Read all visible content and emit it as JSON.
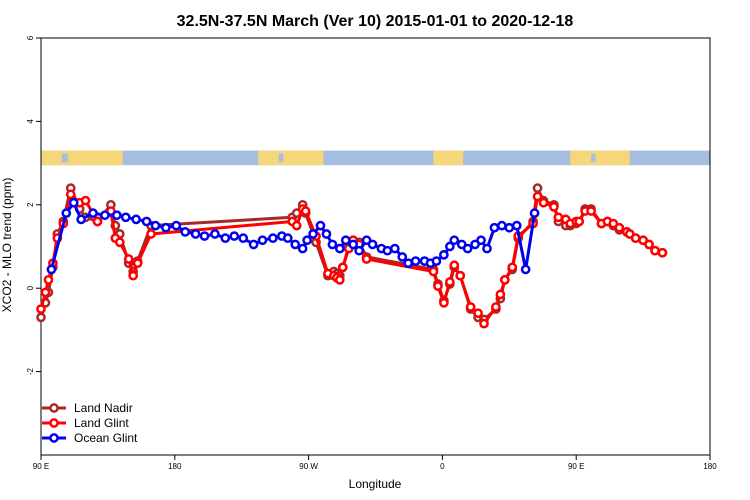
{
  "chart_data": {
    "type": "line",
    "title": "32.5N-37.5N March (Ver 10)   2015-01-01 to 2020-12-18",
    "xlabel": "Longitude",
    "ylabel": "XCO2 - MLO trend (ppm)",
    "x_ticks": [
      {
        "value": 90,
        "label": "90 E"
      },
      {
        "value": 180,
        "label": "180"
      },
      {
        "value": 270,
        "label": "90 W"
      },
      {
        "value": 360,
        "label": "0"
      },
      {
        "value": 450,
        "label": "90 E"
      },
      {
        "value": 540,
        "label": "180"
      }
    ],
    "y_ticks": [
      {
        "value": -2,
        "label": "-2"
      },
      {
        "value": 0,
        "label": "0"
      },
      {
        "value": 2,
        "label": "2"
      },
      {
        "value": 4,
        "label": "4"
      },
      {
        "value": 6,
        "label": "6"
      }
    ],
    "xlim": [
      90,
      540
    ],
    "ylim": [
      -4,
      6
    ],
    "grid": false,
    "legend_position": "bottom-left",
    "land_ocean_strip": {
      "y_range": [
        2.95,
        3.3
      ],
      "land_color": "#f5d67a",
      "ocean_color": "#a4bde0"
    },
    "series": [
      {
        "name": "Land Nadir",
        "color": "#a52a2a",
        "x": [
          90,
          93,
          95,
          98,
          101,
          105,
          110,
          116,
          120,
          128,
          137,
          140,
          143,
          149,
          152,
          155,
          164,
          259,
          262,
          266,
          268,
          275,
          283,
          287,
          289,
          291,
          293,
          297,
          300,
          304,
          309,
          354,
          357,
          361,
          365,
          368,
          372,
          379,
          384,
          388,
          396,
          399,
          402,
          407,
          411,
          421,
          424,
          428,
          435,
          438,
          443,
          446,
          450,
          452,
          456,
          460,
          467,
          471,
          475,
          479,
          484,
          486,
          490,
          495,
          499,
          503,
          508
        ],
        "y": [
          -0.7,
          -0.35,
          -0.1,
          0.5,
          1.3,
          1.6,
          2.4,
          1.9,
          1.7,
          1.6,
          2.0,
          1.5,
          1.3,
          0.6,
          0.4,
          0.65,
          1.5,
          1.7,
          1.8,
          2.0,
          1.8,
          1.1,
          0.3,
          0.4,
          0.35,
          0.3,
          0.5,
          1.0,
          1.15,
          1.1,
          0.75,
          0.45,
          0.1,
          -0.3,
          0.1,
          0.5,
          0.3,
          -0.5,
          -0.7,
          -0.75,
          -0.5,
          -0.25,
          0.2,
          0.45,
          1.2,
          1.6,
          2.4,
          2.1,
          2.0,
          1.6,
          1.5,
          1.5,
          1.55,
          1.6,
          1.9,
          1.9,
          1.55,
          1.6,
          1.5,
          1.4,
          1.35,
          1.3,
          1.2,
          1.15,
          1.05,
          0.9,
          0.85
        ],
        "x_plot_override": [
          -1
        ]
      },
      {
        "name": "Land Glint",
        "color": "#ff0000",
        "x": [
          90,
          93,
          95,
          98,
          101,
          105,
          110,
          116,
          120,
          128,
          137,
          140,
          143,
          149,
          152,
          155,
          164,
          259,
          262,
          266,
          268,
          275,
          283,
          287,
          289,
          291,
          293,
          297,
          300,
          304,
          309,
          354,
          357,
          361,
          365,
          368,
          372,
          379,
          384,
          388,
          396,
          399,
          402,
          407,
          411,
          421,
          424,
          428,
          435,
          438,
          443,
          446,
          450,
          452,
          456,
          460,
          467,
          471,
          475,
          479,
          484,
          486,
          490,
          495,
          499,
          503,
          508
        ],
        "y": [
          -0.5,
          -0.1,
          0.2,
          0.6,
          1.2,
          1.55,
          2.25,
          2.05,
          2.1,
          1.6,
          1.85,
          1.2,
          1.1,
          0.7,
          0.3,
          0.6,
          1.3,
          1.6,
          1.5,
          1.9,
          1.85,
          1.25,
          0.35,
          0.3,
          0.25,
          0.2,
          0.5,
          0.95,
          1.15,
          1.05,
          0.7,
          0.4,
          0.05,
          -0.35,
          0.15,
          0.55,
          0.3,
          -0.45,
          -0.6,
          -0.85,
          -0.45,
          -0.15,
          0.2,
          0.5,
          1.25,
          1.55,
          2.2,
          2.05,
          1.95,
          1.7,
          1.65,
          1.55,
          1.6,
          1.6,
          1.85,
          1.85,
          1.55,
          1.6,
          1.55,
          1.45,
          1.35,
          1.3,
          1.2,
          1.15,
          1.05,
          0.9,
          0.85
        ]
      },
      {
        "name": "Ocean Glint",
        "color": "#0000ee",
        "x": [
          97,
          107,
          112,
          117,
          125,
          133,
          141,
          147,
          154,
          161,
          167,
          174,
          181,
          187,
          194,
          200,
          207,
          214,
          220,
          226,
          233,
          239,
          246,
          252,
          256,
          261,
          266,
          269,
          273,
          278,
          282,
          286,
          291,
          295,
          300,
          304,
          309,
          313,
          319,
          323,
          328,
          333,
          337,
          342,
          348,
          352,
          356,
          361,
          365,
          368,
          373,
          377,
          382,
          386,
          390,
          395,
          400,
          405,
          410,
          416,
          422
        ],
        "y": [
          0.45,
          1.8,
          2.05,
          1.65,
          1.8,
          1.75,
          1.75,
          1.7,
          1.65,
          1.6,
          1.5,
          1.45,
          1.5,
          1.35,
          1.3,
          1.25,
          1.3,
          1.2,
          1.25,
          1.2,
          1.05,
          1.15,
          1.2,
          1.25,
          1.2,
          1.05,
          0.95,
          1.15,
          1.3,
          1.5,
          1.3,
          1.05,
          0.95,
          1.15,
          1.05,
          0.9,
          1.15,
          1.05,
          0.95,
          0.9,
          0.95,
          0.75,
          0.6,
          0.65,
          0.65,
          0.6,
          0.65,
          0.8,
          1.0,
          1.15,
          1.05,
          0.95,
          1.05,
          1.15,
          0.95,
          1.45,
          1.5,
          1.45,
          1.5,
          0.45,
          1.8
        ]
      }
    ]
  }
}
